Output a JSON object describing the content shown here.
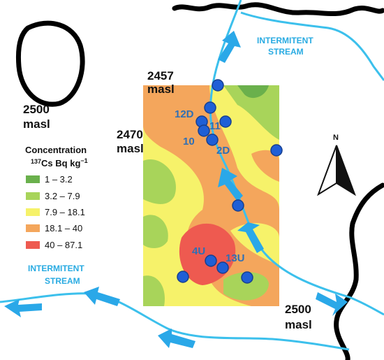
{
  "elevation_labels": [
    {
      "value": "2457",
      "unit": "masl"
    },
    {
      "value": "2500",
      "unit": "masl"
    },
    {
      "value": "2470",
      "unit": "masl"
    },
    {
      "value": "2500",
      "unit": "masl"
    }
  ],
  "stream_labels": [
    {
      "line1": "INTERMITENT",
      "line2": "STREAM"
    },
    {
      "line1": "INTERMITENT",
      "line2": "STREAM"
    }
  ],
  "sample_labels": [
    "12D",
    "11",
    "10",
    "2D",
    "4U",
    "13U"
  ],
  "legend": {
    "title": "Concentration",
    "isotope_mass": "137",
    "element": "Cs",
    "unit": "Bq kg",
    "exponent": "−1",
    "items": [
      "1 – 3.2",
      "3.2 – 7.9",
      "7.9 – 18.1",
      "18.1 – 40",
      "40 – 87.1"
    ]
  },
  "north_label": "N"
}
